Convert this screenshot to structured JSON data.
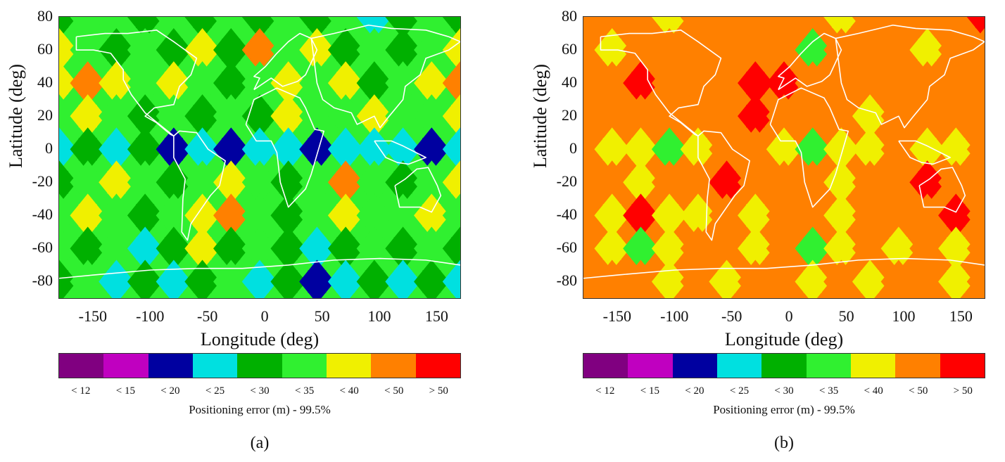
{
  "chart_data": [
    {
      "type": "heatmap",
      "panel_label": "(a)",
      "title": "",
      "xlabel": "Longitude (deg)",
      "ylabel": "Latitude (deg)",
      "xlim": [
        -180,
        170
      ],
      "ylim": [
        -90,
        80
      ],
      "x_ticks": [
        "-150",
        "-100",
        "-50",
        "0",
        "50",
        "100",
        "150"
      ],
      "y_ticks": [
        "80",
        "60",
        "40",
        "20",
        "0",
        "-20",
        "-40",
        "-60",
        "-80"
      ],
      "colorbar": {
        "title": "Positioning error (m) - 99.5%",
        "labels": [
          "< 12",
          "< 15",
          "< 20",
          "< 25",
          "< 30",
          "< 35",
          "< 40",
          "< 50",
          "> 50"
        ],
        "colors": [
          "#800080",
          "#c000c0",
          "#0000a0",
          "#00e0e0",
          "#00b000",
          "#30f030",
          "#f0f000",
          "#ff8000",
          "#ff0000"
        ]
      },
      "grid_lon": [
        -180,
        -155,
        -130,
        -105,
        -80,
        -55,
        -30,
        -5,
        20,
        45,
        70,
        95,
        120,
        145,
        170
      ],
      "grid_lat": [
        80,
        60,
        40,
        20,
        0,
        -20,
        -40,
        -60,
        -80
      ],
      "levels": [
        [
          4,
          5,
          5,
          4,
          5,
          4,
          5,
          4,
          5,
          4,
          5,
          3,
          4,
          5,
          4
        ],
        [
          6,
          5,
          4,
          5,
          4,
          6,
          4,
          7,
          5,
          6,
          4,
          5,
          4,
          5,
          6
        ],
        [
          6,
          7,
          6,
          5,
          6,
          5,
          4,
          5,
          6,
          5,
          6,
          4,
          5,
          6,
          7
        ],
        [
          5,
          6,
          5,
          4,
          5,
          4,
          5,
          4,
          6,
          5,
          5,
          6,
          5,
          5,
          6
        ],
        [
          3,
          4,
          3,
          4,
          2,
          3,
          2,
          3,
          3,
          2,
          3,
          3,
          3,
          2,
          3
        ],
        [
          4,
          5,
          6,
          5,
          4,
          5,
          6,
          5,
          4,
          5,
          7,
          5,
          4,
          5,
          6
        ],
        [
          5,
          6,
          5,
          4,
          5,
          6,
          7,
          5,
          4,
          5,
          6,
          5,
          5,
          6,
          5
        ],
        [
          5,
          4,
          5,
          3,
          4,
          6,
          4,
          5,
          4,
          3,
          4,
          5,
          4,
          5,
          4
        ],
        [
          4,
          5,
          3,
          4,
          3,
          4,
          5,
          3,
          4,
          2,
          3,
          4,
          3,
          4,
          3
        ]
      ]
    },
    {
      "type": "heatmap",
      "panel_label": "(b)",
      "title": "",
      "xlabel": "Longitude (deg)",
      "ylabel": "Latitude (deg)",
      "xlim": [
        -180,
        170
      ],
      "ylim": [
        -90,
        80
      ],
      "x_ticks": [
        "-150",
        "-100",
        "-50",
        "0",
        "50",
        "100",
        "150"
      ],
      "y_ticks": [
        "80",
        "60",
        "40",
        "20",
        "0",
        "-20",
        "-40",
        "-60",
        "-80"
      ],
      "colorbar": {
        "title": "Positioning error (m) - 99.5%",
        "labels": [
          "< 12",
          "< 15",
          "< 20",
          "< 25",
          "< 30",
          "< 35",
          "< 40",
          "< 50",
          "> 50"
        ],
        "colors": [
          "#800080",
          "#c000c0",
          "#0000a0",
          "#00e0e0",
          "#00b000",
          "#30f030",
          "#f0f000",
          "#ff8000",
          "#ff0000"
        ]
      },
      "grid_lon": [
        -180,
        -155,
        -130,
        -105,
        -80,
        -55,
        -30,
        -5,
        20,
        45,
        70,
        95,
        120,
        145,
        170
      ],
      "grid_lat": [
        80,
        60,
        40,
        20,
        0,
        -20,
        -40,
        -60,
        -80
      ],
      "levels": [
        [
          7,
          7,
          7,
          6,
          7,
          7,
          7,
          7,
          7,
          6,
          7,
          7,
          7,
          7,
          8
        ],
        [
          7,
          6,
          7,
          7,
          7,
          7,
          7,
          7,
          5,
          7,
          7,
          7,
          6,
          7,
          7
        ],
        [
          7,
          7,
          8,
          7,
          7,
          7,
          8,
          8,
          7,
          7,
          7,
          7,
          7,
          7,
          7
        ],
        [
          7,
          7,
          7,
          7,
          7,
          7,
          8,
          7,
          7,
          7,
          6,
          7,
          7,
          7,
          7
        ],
        [
          7,
          6,
          6,
          5,
          6,
          7,
          7,
          6,
          5,
          6,
          6,
          7,
          6,
          6,
          7
        ],
        [
          7,
          7,
          6,
          7,
          7,
          8,
          7,
          7,
          7,
          6,
          7,
          7,
          8,
          7,
          7
        ],
        [
          7,
          6,
          8,
          6,
          6,
          7,
          6,
          7,
          7,
          6,
          7,
          7,
          7,
          8,
          7
        ],
        [
          7,
          6,
          5,
          6,
          7,
          7,
          6,
          7,
          5,
          6,
          7,
          6,
          7,
          6,
          7
        ],
        [
          7,
          7,
          7,
          6,
          7,
          6,
          7,
          7,
          6,
          7,
          6,
          7,
          7,
          6,
          7
        ]
      ]
    }
  ]
}
